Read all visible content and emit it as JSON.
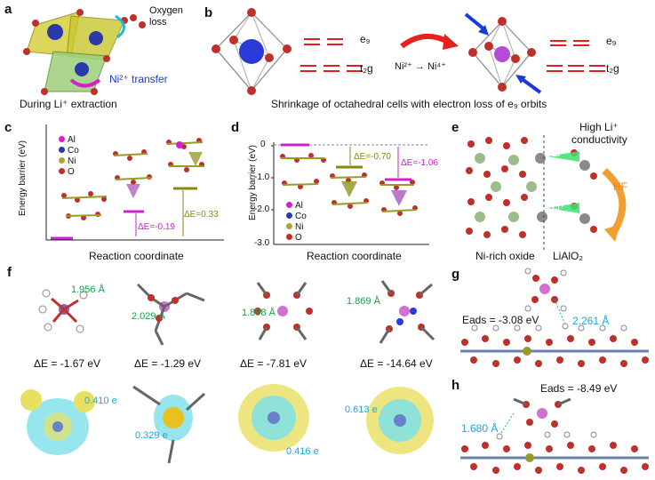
{
  "panels": {
    "a": {
      "letter": "a",
      "oxygen_loss": "Oxygen loss",
      "ni_transfer": "Ni²⁺ transfer",
      "caption": "During Li⁺ extraction"
    },
    "b": {
      "letter": "b",
      "eg": "e₉",
      "t2g": "t₂g",
      "reaction": "Ni²⁺ → Ni⁴⁺",
      "caption": "Shrinkage of octahedral cells with electron loss of e₉ orbits"
    },
    "c": {
      "letter": "c",
      "legend": [
        "Al",
        "Co",
        "Ni",
        "O"
      ],
      "ylabel": "Energy barrier (eV)",
      "xlabel": "Reaction coordinate",
      "de1": "ΔE=-0.19",
      "de2": "ΔE=0.33"
    },
    "d": {
      "letter": "d",
      "legend": [
        "Al",
        "Co",
        "Ni",
        "O"
      ],
      "ylabel": "Energy barrier (eV)",
      "xlabel": "Reaction coordinate",
      "yticks": [
        "0",
        "-1.0",
        "-2.0",
        "-3.0"
      ],
      "de1": "ΔE=-0.70",
      "de2": "ΔE=-1.06"
    },
    "e": {
      "letter": "e",
      "high": "High Li⁺",
      "conductivity": "conductivity",
      "li_top": "Li⁺",
      "li_bot": "Li⁺",
      "hf": "HF",
      "left_label": "Ni-rich oxide",
      "right_label": "LiAlO₂"
    },
    "f": {
      "letter": "f",
      "bonds": [
        "1.956 Å",
        "2.029 Å",
        "1.898 Å",
        "1.869 Å"
      ],
      "energies": [
        "ΔE = -1.67 eV",
        "ΔE = -1.29 eV",
        "ΔE = -7.81 eV",
        "ΔE = -14.64 eV"
      ],
      "charges": [
        "0.410 e",
        "0.329 e",
        "0.416 e",
        "0.613 e"
      ]
    },
    "g": {
      "letter": "g",
      "eads": "Eads = -3.08 eV",
      "bond": "2.261 Å"
    },
    "h": {
      "letter": "h",
      "eads": "Eads = -8.49 eV",
      "bond": "1.680 Å"
    }
  },
  "colors": {
    "magenta": "#d21fd0",
    "olive": "#8a8a10",
    "green": "#1e9e4a",
    "cyan": "#1fa6d8",
    "oxygen": "#c0302a",
    "nickel": "#9a9a2a",
    "cobalt": "#2a3aa8"
  }
}
